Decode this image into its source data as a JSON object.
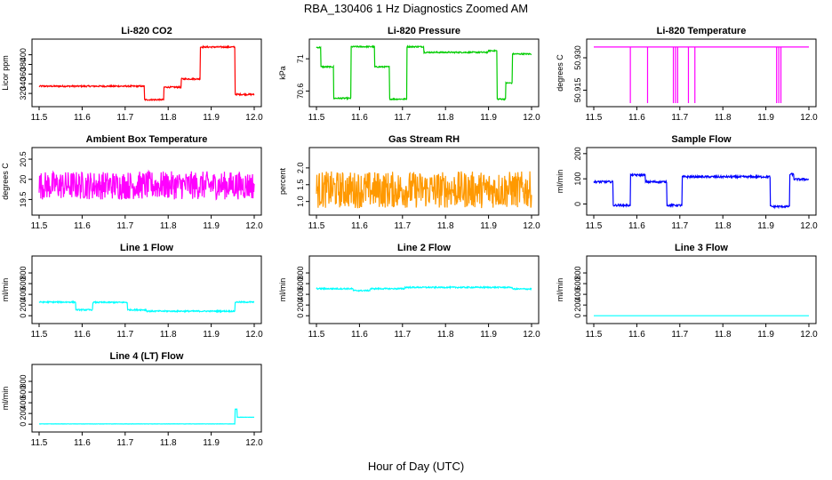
{
  "figure": {
    "title": "RBA_130406  1 Hz Diagnostics Zoomed AM",
    "xlabel": "Hour of Day (UTC)"
  },
  "chart_data": [
    {
      "type": "line",
      "title": "Li-820 CO2",
      "ylabel": "Licor ppm",
      "color": "#ff0000",
      "xlim": [
        11.5,
        12.0
      ],
      "ylim": [
        300,
        425
      ],
      "xticks": [
        "11.5",
        "11.6",
        "11.7",
        "11.8",
        "11.9",
        "12.0"
      ],
      "yticks": [
        320,
        340,
        360,
        380,
        400
      ],
      "segments": [
        [
          11.5,
          11.745,
          335
        ],
        [
          11.745,
          11.79,
          307
        ],
        [
          11.79,
          11.83,
          333
        ],
        [
          11.83,
          11.875,
          350
        ],
        [
          11.875,
          11.955,
          416
        ],
        [
          11.955,
          12.0,
          318
        ]
      ],
      "noise": 1.5
    },
    {
      "type": "line",
      "title": "Li-820 Pressure",
      "ylabel": "kPa",
      "color": "#00cc00",
      "xlim": [
        11.5,
        12.0
      ],
      "ylim": [
        70.45,
        71.2
      ],
      "xticks": [
        "11.5",
        "11.6",
        "11.7",
        "11.8",
        "11.9",
        "12.0"
      ],
      "yticks": [
        70.6,
        71.0
      ],
      "segments": [
        [
          11.5,
          11.51,
          71.14
        ],
        [
          11.51,
          11.54,
          70.9
        ],
        [
          11.54,
          11.58,
          70.51
        ],
        [
          11.58,
          11.635,
          71.15
        ],
        [
          11.635,
          11.67,
          70.9
        ],
        [
          11.67,
          11.71,
          70.5
        ],
        [
          11.71,
          11.75,
          71.15
        ],
        [
          11.75,
          11.9,
          71.08
        ],
        [
          11.9,
          11.92,
          71.1
        ],
        [
          11.92,
          11.94,
          70.5
        ],
        [
          11.94,
          11.955,
          70.7
        ],
        [
          11.955,
          12.0,
          71.06
        ]
      ],
      "noise": 0.008
    },
    {
      "type": "line",
      "title": "Li-820 Temperature",
      "ylabel": "degrees C",
      "color": "#ff00ff",
      "xlim": [
        11.5,
        12.0
      ],
      "ylim": [
        50.909,
        50.937
      ],
      "xticks": [
        "11.5",
        "11.6",
        "11.7",
        "11.8",
        "11.9",
        "12.0"
      ],
      "yticks": [
        50.915,
        50.93
      ],
      "yticklabels": [
        "50.915",
        "50.930"
      ],
      "baseline": 50.935,
      "dips": [
        11.585,
        11.625,
        11.685,
        11.69,
        11.695,
        11.72,
        11.735,
        11.925,
        11.93,
        11.935
      ],
      "dip_value": 50.909,
      "noise": 0
    },
    {
      "type": "line",
      "title": "Ambient Box Temperature",
      "ylabel": "degrees C",
      "color": "#ff00ff",
      "xlim": [
        11.5,
        12.0
      ],
      "ylim": [
        19.2,
        20.7
      ],
      "xticks": [
        "11.5",
        "11.6",
        "11.7",
        "11.8",
        "11.9",
        "12.0"
      ],
      "yticks": [
        19.5,
        20.0,
        20.5
      ],
      "yticklabels": [
        "19.5",
        "20",
        "20.5"
      ],
      "segments": [
        [
          11.5,
          12.0,
          19.85
        ]
      ],
      "noise": 0.35
    },
    {
      "type": "line",
      "title": "Gas Stream RH",
      "ylabel": "percent",
      "color": "#ff9900",
      "xlim": [
        11.5,
        12.0
      ],
      "ylim": [
        0.7,
        2.5
      ],
      "xticks": [
        "11.5",
        "11.6",
        "11.7",
        "11.8",
        "11.9",
        "12.0"
      ],
      "yticks": [
        1.0,
        1.5,
        2.0
      ],
      "yticklabels": [
        "1.0",
        "1.5",
        "2.0"
      ],
      "segments": [
        [
          11.5,
          12.0,
          1.35
        ]
      ],
      "noise": 0.55
    },
    {
      "type": "line",
      "title": "Sample Flow",
      "ylabel": "ml/min",
      "color": "#0000ff",
      "xlim": [
        11.5,
        12.0
      ],
      "ylim": [
        -30,
        210
      ],
      "xticks": [
        "11.5",
        "11.6",
        "11.7",
        "11.8",
        "11.9",
        "12.0"
      ],
      "yticks": [
        0,
        100,
        200
      ],
      "segments": [
        [
          11.5,
          11.545,
          88
        ],
        [
          11.545,
          11.585,
          -5
        ],
        [
          11.585,
          11.62,
          115
        ],
        [
          11.62,
          11.67,
          88
        ],
        [
          11.67,
          11.705,
          -5
        ],
        [
          11.705,
          11.91,
          108
        ],
        [
          11.91,
          11.955,
          -10
        ],
        [
          11.955,
          11.965,
          118
        ],
        [
          11.965,
          12.0,
          98
        ]
      ],
      "noise": 4
    },
    {
      "type": "line",
      "title": "Line 1 Flow",
      "ylabel": "ml/min",
      "color": "#00ffff",
      "xlim": [
        11.5,
        12.0
      ],
      "ylim": [
        -80,
        1050
      ],
      "xticks": [
        "11.5",
        "11.6",
        "11.7",
        "11.8",
        "11.9",
        "12.0"
      ],
      "yticks": [
        0,
        200,
        400,
        600,
        800
      ],
      "segments": [
        [
          11.5,
          11.585,
          255
        ],
        [
          11.585,
          11.625,
          110
        ],
        [
          11.625,
          11.705,
          250
        ],
        [
          11.705,
          11.75,
          110
        ],
        [
          11.75,
          11.955,
          85
        ],
        [
          11.955,
          12.0,
          255
        ]
      ],
      "noise": 12
    },
    {
      "type": "line",
      "title": "Line 2 Flow",
      "ylabel": "ml/min",
      "color": "#00ffff",
      "xlim": [
        11.5,
        12.0
      ],
      "ylim": [
        -80,
        1050
      ],
      "xticks": [
        "11.5",
        "11.6",
        "11.7",
        "11.8",
        "11.9",
        "12.0"
      ],
      "yticks": [
        0,
        200,
        400,
        600,
        800
      ],
      "segments": [
        [
          11.5,
          11.585,
          505
        ],
        [
          11.585,
          11.625,
          470
        ],
        [
          11.625,
          11.705,
          505
        ],
        [
          11.705,
          11.955,
          530
        ],
        [
          11.955,
          12.0,
          500
        ]
      ],
      "noise": 12
    },
    {
      "type": "line",
      "title": "Line 3 Flow",
      "ylabel": "ml/min",
      "color": "#00ffff",
      "xlim": [
        11.5,
        12.0
      ],
      "ylim": [
        -80,
        1050
      ],
      "xticks": [
        "11.5",
        "11.6",
        "11.7",
        "11.8",
        "11.9",
        "12.0"
      ],
      "yticks": [
        0,
        200,
        400,
        600,
        800
      ],
      "segments": [
        [
          11.5,
          12.0,
          0
        ]
      ],
      "noise": 0
    },
    {
      "type": "line",
      "title": "Line 4 (LT) Flow",
      "ylabel": "ml/min",
      "color": "#00ffff",
      "xlim": [
        11.5,
        12.0
      ],
      "ylim": [
        -80,
        1050
      ],
      "xticks": [
        "11.5",
        "11.6",
        "11.7",
        "11.8",
        "11.9",
        "12.0"
      ],
      "yticks": [
        0,
        200,
        400,
        600,
        800
      ],
      "segments": [
        [
          11.5,
          11.955,
          5
        ],
        [
          11.955,
          11.96,
          280
        ],
        [
          11.96,
          12.0,
          130
        ]
      ],
      "noise": 2
    }
  ]
}
